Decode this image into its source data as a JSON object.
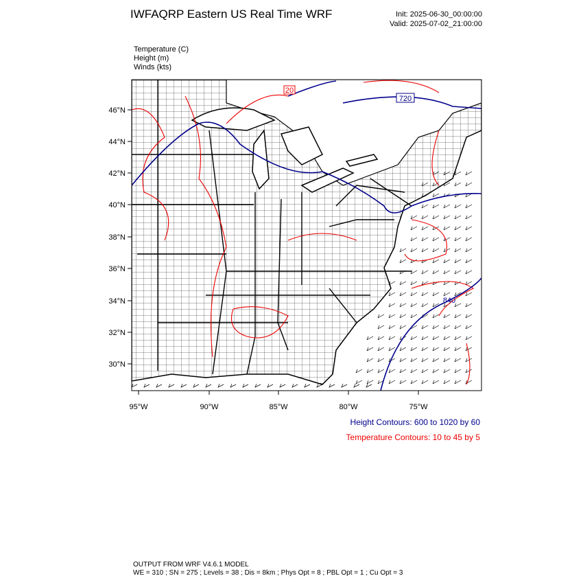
{
  "header": {
    "title": "IWFAQRP Eastern US Real Time WRF",
    "init": "Init: 2025-06-30_00:00:00",
    "valid": "Valid: 2025-07-02_21:00:00"
  },
  "fields": [
    "Temperature   (C)",
    "Height   (m)",
    "Winds   (kts)"
  ],
  "map": {
    "lat_labels": [
      "46°N",
      "44°N",
      "42°N",
      "40°N",
      "38°N",
      "36°N",
      "34°N",
      "32°N",
      "30°N"
    ],
    "lon_labels": [
      "95°W",
      "90°W",
      "85°W",
      "80°W",
      "75°W"
    ],
    "contour_labels": [
      "20",
      "720",
      "840"
    ]
  },
  "legend": {
    "height": "Height Contours: 600 to 1020 by 60",
    "temperature": "Temperature Contours: 10 to 45 by 5"
  },
  "footer": {
    "line1": "OUTPUT FROM WRF V4.6.1 MODEL",
    "line2": "WE = 310 ; SN = 275 ; Levels = 38 ; Dis = 8km ; Phys Opt = 8 ; PBL Opt = 1 ; Cu Opt = 3"
  }
}
